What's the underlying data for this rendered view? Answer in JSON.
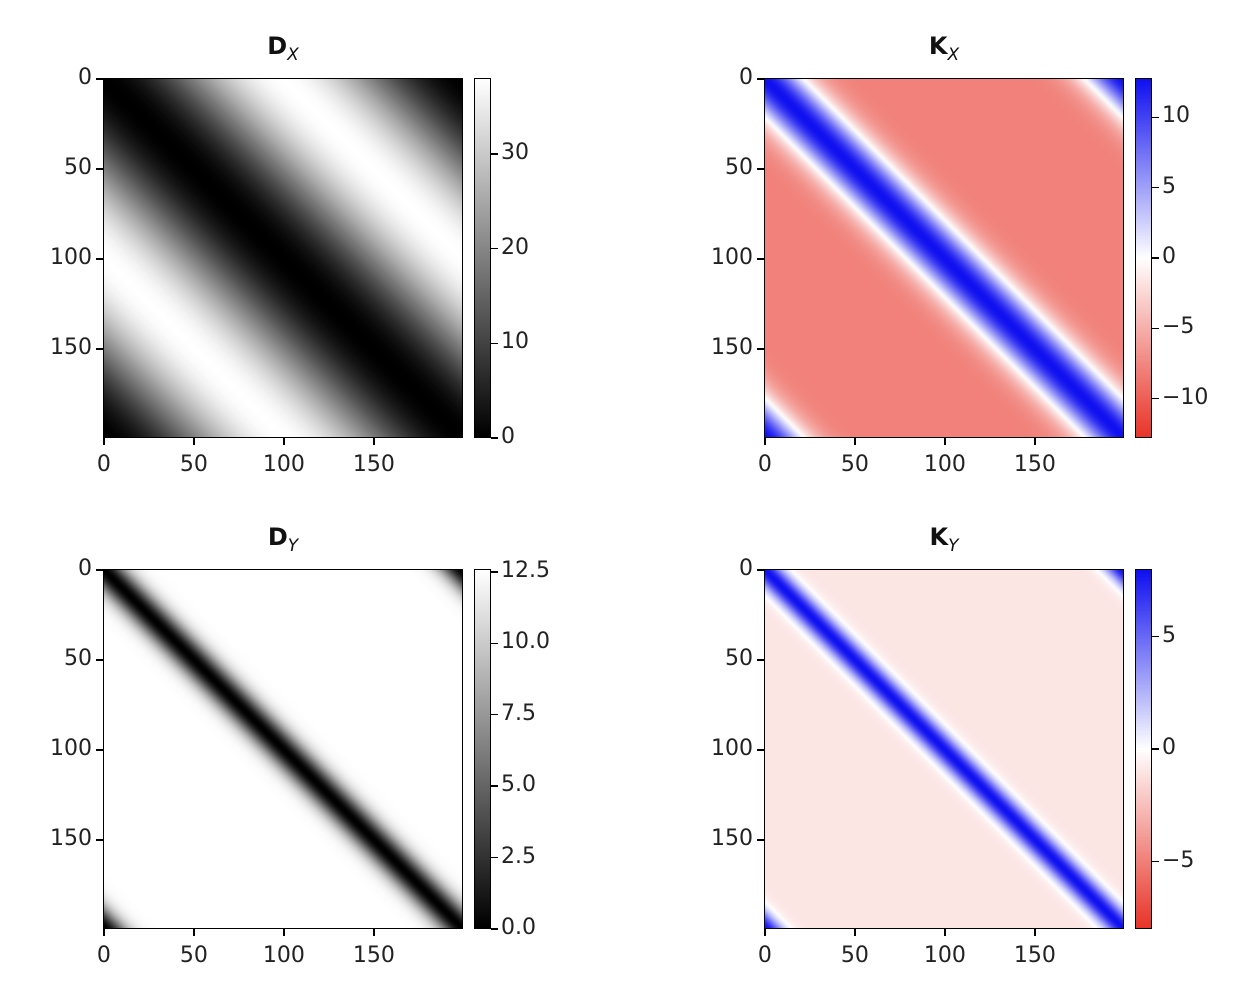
{
  "chart_data": [
    {
      "type": "heatmap",
      "title_main": "D",
      "title_sub": "X",
      "colormap": "gray",
      "matrix_size": 200,
      "pattern": "periodic distance along diagonal, dark on diagonal and corners",
      "vmin": 0,
      "vmax": 38,
      "xticks": [
        "0",
        "50",
        "100",
        "150"
      ],
      "yticks": [
        "0",
        "50",
        "100",
        "150"
      ],
      "colorbar_ticks": [
        {
          "value": 0,
          "label": "0"
        },
        {
          "value": 10,
          "label": "10"
        },
        {
          "value": 20,
          "label": "20"
        },
        {
          "value": 30,
          "label": "30"
        }
      ]
    },
    {
      "type": "heatmap",
      "title_main": "K",
      "title_sub": "X",
      "colormap": "bwr_r",
      "matrix_size": 200,
      "pattern": "positive band along diagonal and corners, negative elsewhere",
      "vmin": -12.8,
      "vmax": 12.8,
      "off_diagonal_value": -8,
      "band_width": 22,
      "xticks": [
        "0",
        "50",
        "100",
        "150"
      ],
      "yticks": [
        "0",
        "50",
        "100",
        "150"
      ],
      "colorbar_ticks": [
        {
          "value": 10,
          "label": "10"
        },
        {
          "value": 5,
          "label": "5"
        },
        {
          "value": 0,
          "label": "0"
        },
        {
          "value": -5,
          "label": "−5"
        },
        {
          "value": -10,
          "label": "−10"
        }
      ]
    },
    {
      "type": "heatmap",
      "title_main": "D",
      "title_sub": "Y",
      "colormap": "gray",
      "matrix_size": 200,
      "pattern": "narrow dark diagonal band",
      "vmin": 0,
      "vmax": 12.6,
      "band_width": 12,
      "xticks": [
        "0",
        "50",
        "100",
        "150"
      ],
      "yticks": [
        "0",
        "50",
        "100",
        "150"
      ],
      "colorbar_ticks": [
        {
          "value": 0,
          "label": "0.0"
        },
        {
          "value": 2.5,
          "label": "2.5"
        },
        {
          "value": 5,
          "label": "5.0"
        },
        {
          "value": 7.5,
          "label": "7.5"
        },
        {
          "value": 10,
          "label": "10.0"
        },
        {
          "value": 12.5,
          "label": "12.5"
        }
      ]
    },
    {
      "type": "heatmap",
      "title_main": "K",
      "title_sub": "Y",
      "colormap": "bwr_r",
      "matrix_size": 200,
      "pattern": "narrow positive diagonal band, slightly negative elsewhere",
      "vmin": -8,
      "vmax": 8,
      "off_diagonal_value": -1,
      "band_width": 10,
      "xticks": [
        "0",
        "50",
        "100",
        "150"
      ],
      "yticks": [
        "0",
        "50",
        "100",
        "150"
      ],
      "colorbar_ticks": [
        {
          "value": 5,
          "label": "5"
        },
        {
          "value": 0,
          "label": "0"
        },
        {
          "value": -5,
          "label": "−5"
        }
      ]
    }
  ],
  "colors": {
    "blue": "#1010f0",
    "red": "#e8352a"
  }
}
